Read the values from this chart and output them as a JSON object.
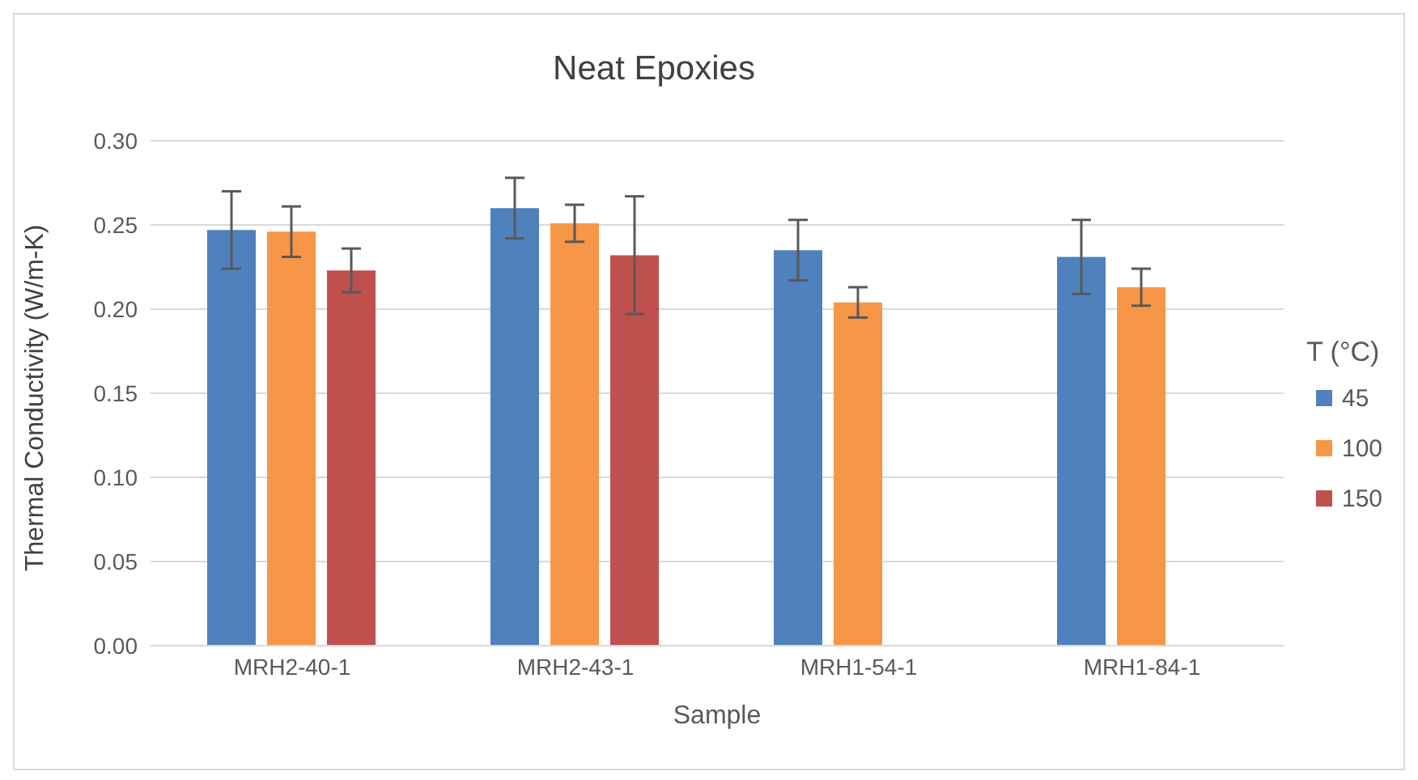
{
  "chart_data": {
    "type": "bar",
    "title": "Neat Epoxies",
    "xlabel": "Sample",
    "ylabel": "Thermal Conductivity (W/m-K)",
    "legend_title": "T (°C)",
    "categories": [
      "MRH2-40-1",
      "MRH2-43-1",
      "MRH1-54-1",
      "MRH1-84-1"
    ],
    "series": [
      {
        "name": "45",
        "color": "#4f81bd",
        "values": [
          0.247,
          0.26,
          0.235,
          0.231
        ],
        "errors": [
          0.023,
          0.018,
          0.018,
          0.022
        ]
      },
      {
        "name": "100",
        "color": "#f79646",
        "values": [
          0.246,
          0.251,
          0.204,
          0.213
        ],
        "errors": [
          0.015,
          0.011,
          0.009,
          0.011
        ]
      },
      {
        "name": "150",
        "color": "#c0504d",
        "values": [
          0.223,
          0.232,
          null,
          null
        ],
        "errors": [
          0.013,
          0.035,
          null,
          null
        ]
      }
    ],
    "ylim": [
      0,
      0.3
    ],
    "yticks": [
      {
        "value": 0,
        "label": "0.00"
      },
      {
        "value": 0.05,
        "label": "0.05"
      },
      {
        "value": 0.1,
        "label": "0.10"
      },
      {
        "value": 0.15,
        "label": "0.15"
      },
      {
        "value": 0.2,
        "label": "0.20"
      },
      {
        "value": 0.25,
        "label": "0.25"
      },
      {
        "value": 0.3,
        "label": "0.30"
      }
    ],
    "grid": "y",
    "legend": "right"
  }
}
